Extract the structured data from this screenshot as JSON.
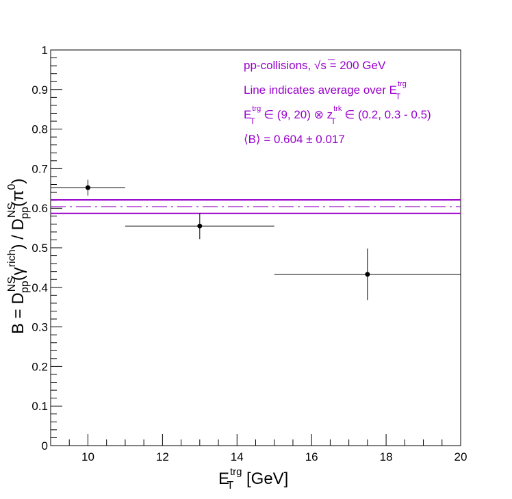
{
  "chart_data": {
    "type": "scatter",
    "xlim": [
      9,
      20
    ],
    "ylim": [
      0,
      1
    ],
    "x_ticks": [
      10,
      12,
      14,
      16,
      18,
      20
    ],
    "y_ticks": [
      0,
      0.1,
      0.2,
      0.3,
      0.4,
      0.5,
      0.6,
      0.7,
      0.8,
      0.9,
      1
    ],
    "x_tick_labels": [
      "10",
      "12",
      "14",
      "16",
      "18",
      "20"
    ],
    "y_tick_labels": [
      "0",
      "0.1",
      "0.2",
      "0.3",
      "0.4",
      "0.5",
      "0.6",
      "0.7",
      "0.8",
      "0.9",
      "1"
    ],
    "grid": false,
    "points": [
      {
        "x": 10,
        "y": 0.652,
        "x_low": 9,
        "x_high": 11,
        "y_err": 0.02
      },
      {
        "x": 13,
        "y": 0.555,
        "x_low": 11,
        "x_high": 15,
        "y_err": 0.033
      },
      {
        "x": 17.5,
        "y": 0.433,
        "x_low": 15,
        "x_high": 20,
        "y_err": 0.065
      }
    ],
    "average": {
      "value": 0.604,
      "error": 0.017
    },
    "colors": {
      "points": "#000000",
      "average": "#9900cc"
    },
    "annotations": {
      "line1": {
        "prefix": "pp-collisions, ",
        "sqrt": "√",
        "s": "s",
        "suffix": " = 200 GeV"
      },
      "line2": {
        "text": "Line indicates average over E",
        "sub": "T",
        "sup": "trg"
      },
      "line3": {
        "e": "E",
        "e_sub": "T",
        "e_sup": "trg",
        "mid": " ∈ (9, 20) ⊗ z",
        "z_sub": "T",
        "z_sup": "trk",
        "end": " ∈ (0.2, 0.3 - 0.5)"
      },
      "line4": "⟨B⟩ = 0.604 ± 0.017"
    },
    "xlabel": {
      "e": "E",
      "sub": "T",
      "sup": "trg",
      "unit": " [GeV]"
    },
    "ylabel": {
      "b": "B = D",
      "d1_sub": "pp",
      "d1_sup": "NS",
      "d1_arg_open": "(γ",
      "d1_arg_sup": "rich",
      "d1_arg_close": ")",
      "slash": " / D",
      "d2_sub": "pp",
      "d2_sup": "NS",
      "d2_arg_open": "(π",
      "d2_arg_sup": "0",
      "d2_arg_close": ")"
    }
  }
}
